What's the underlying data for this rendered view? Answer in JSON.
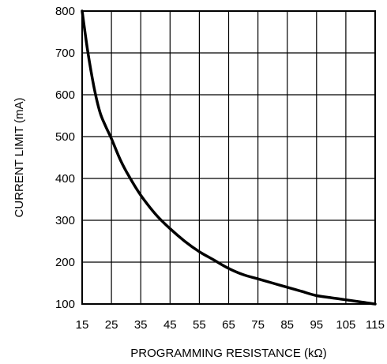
{
  "chart_data": {
    "type": "line",
    "title": "",
    "xlabel": "PROGRAMMING RESISTANCE (kΩ)",
    "ylabel": "CURRENT LIMIT (mA)",
    "xlim": [
      15,
      115
    ],
    "ylim": [
      100,
      800
    ],
    "xticks": [
      15,
      25,
      35,
      45,
      55,
      65,
      75,
      85,
      95,
      105,
      115
    ],
    "yticks": [
      100,
      200,
      300,
      400,
      500,
      600,
      700,
      800
    ],
    "grid": true,
    "line_color": "#000000",
    "series": [
      {
        "x": [
          15,
          17,
          19,
          21,
          23,
          25,
          28,
          31,
          35,
          40,
          45,
          50,
          55,
          60,
          65,
          70,
          75,
          80,
          85,
          90,
          95,
          100,
          105,
          110,
          115
        ],
        "y": [
          800,
          700,
          620,
          560,
          525,
          495,
          445,
          405,
          360,
          315,
          280,
          250,
          225,
          205,
          185,
          170,
          160,
          150,
          140,
          130,
          120,
          115,
          110,
          105,
          100
        ]
      }
    ]
  }
}
